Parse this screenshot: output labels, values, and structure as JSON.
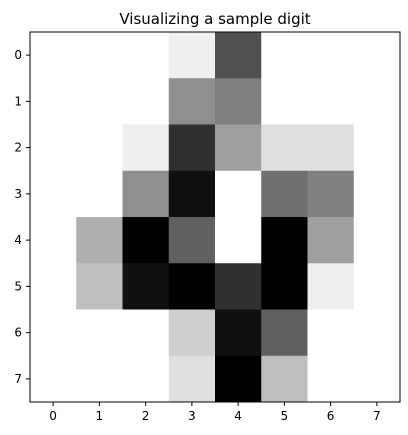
{
  "chart_data": {
    "type": "heatmap",
    "title": "Visualizing a sample digit",
    "xlabel": "",
    "ylabel": "",
    "x_ticks": [
      "0",
      "1",
      "2",
      "3",
      "4",
      "5",
      "6",
      "7"
    ],
    "y_ticks": [
      "0",
      "1",
      "2",
      "3",
      "4",
      "5",
      "6",
      "7"
    ],
    "colormap": "gray_r",
    "value_range": [
      0,
      16
    ],
    "grid": false,
    "values": [
      [
        0,
        0,
        0,
        1,
        11,
        0,
        0,
        0
      ],
      [
        0,
        0,
        0,
        7,
        8,
        0,
        0,
        0
      ],
      [
        0,
        0,
        1,
        13,
        6,
        2,
        2,
        0
      ],
      [
        0,
        0,
        7,
        15,
        0,
        9,
        8,
        0
      ],
      [
        0,
        5,
        16,
        10,
        0,
        16,
        6,
        0
      ],
      [
        0,
        4,
        15,
        16,
        13,
        16,
        1,
        0
      ],
      [
        0,
        0,
        0,
        3,
        15,
        10,
        0,
        0
      ],
      [
        0,
        0,
        0,
        2,
        16,
        4,
        0,
        0
      ]
    ]
  }
}
